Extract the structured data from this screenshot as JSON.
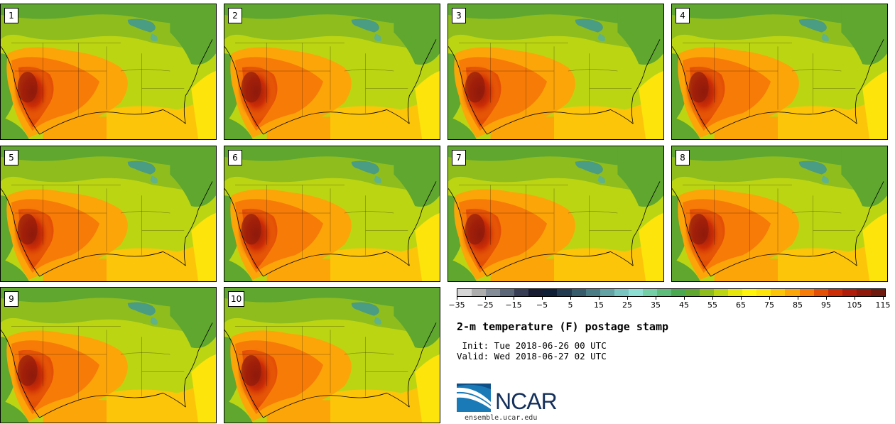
{
  "title": "2-m temperature (F) postage stamp",
  "init_line": " Init: Tue 2018-06-26 00 UTC",
  "valid_line": "Valid: Wed 2018-06-27 02 UTC",
  "logo_name": "NCAR",
  "site": "ensemble.ucar.edu",
  "members": [
    "1",
    "2",
    "3",
    "4",
    "5",
    "6",
    "7",
    "8",
    "9",
    "10"
  ],
  "legend": {
    "tick_labels": [
      "−35",
      "−25",
      "−15",
      "−5",
      "5",
      "15",
      "25",
      "35",
      "45",
      "55",
      "65",
      "75",
      "85",
      "95",
      "105",
      "115"
    ],
    "colors": [
      "#d6d6d6",
      "#adadad",
      "#848c97",
      "#5c6679",
      "#383d56",
      "#171c33",
      "#0f1f36",
      "#223b50",
      "#365b6a",
      "#4a7c86",
      "#62a2a5",
      "#78c4c1",
      "#8ddfd3",
      "#74cfa6",
      "#5ebd7b",
      "#4aa850",
      "#5fa72f",
      "#8fbd1e",
      "#bcd513",
      "#e6e60c",
      "#fef40c",
      "#fde40b",
      "#fdc50a",
      "#fca509",
      "#f77b07",
      "#e44f06",
      "#cd2d06",
      "#af1c0a",
      "#8f1a0c",
      "#6e1a0e"
    ]
  }
}
